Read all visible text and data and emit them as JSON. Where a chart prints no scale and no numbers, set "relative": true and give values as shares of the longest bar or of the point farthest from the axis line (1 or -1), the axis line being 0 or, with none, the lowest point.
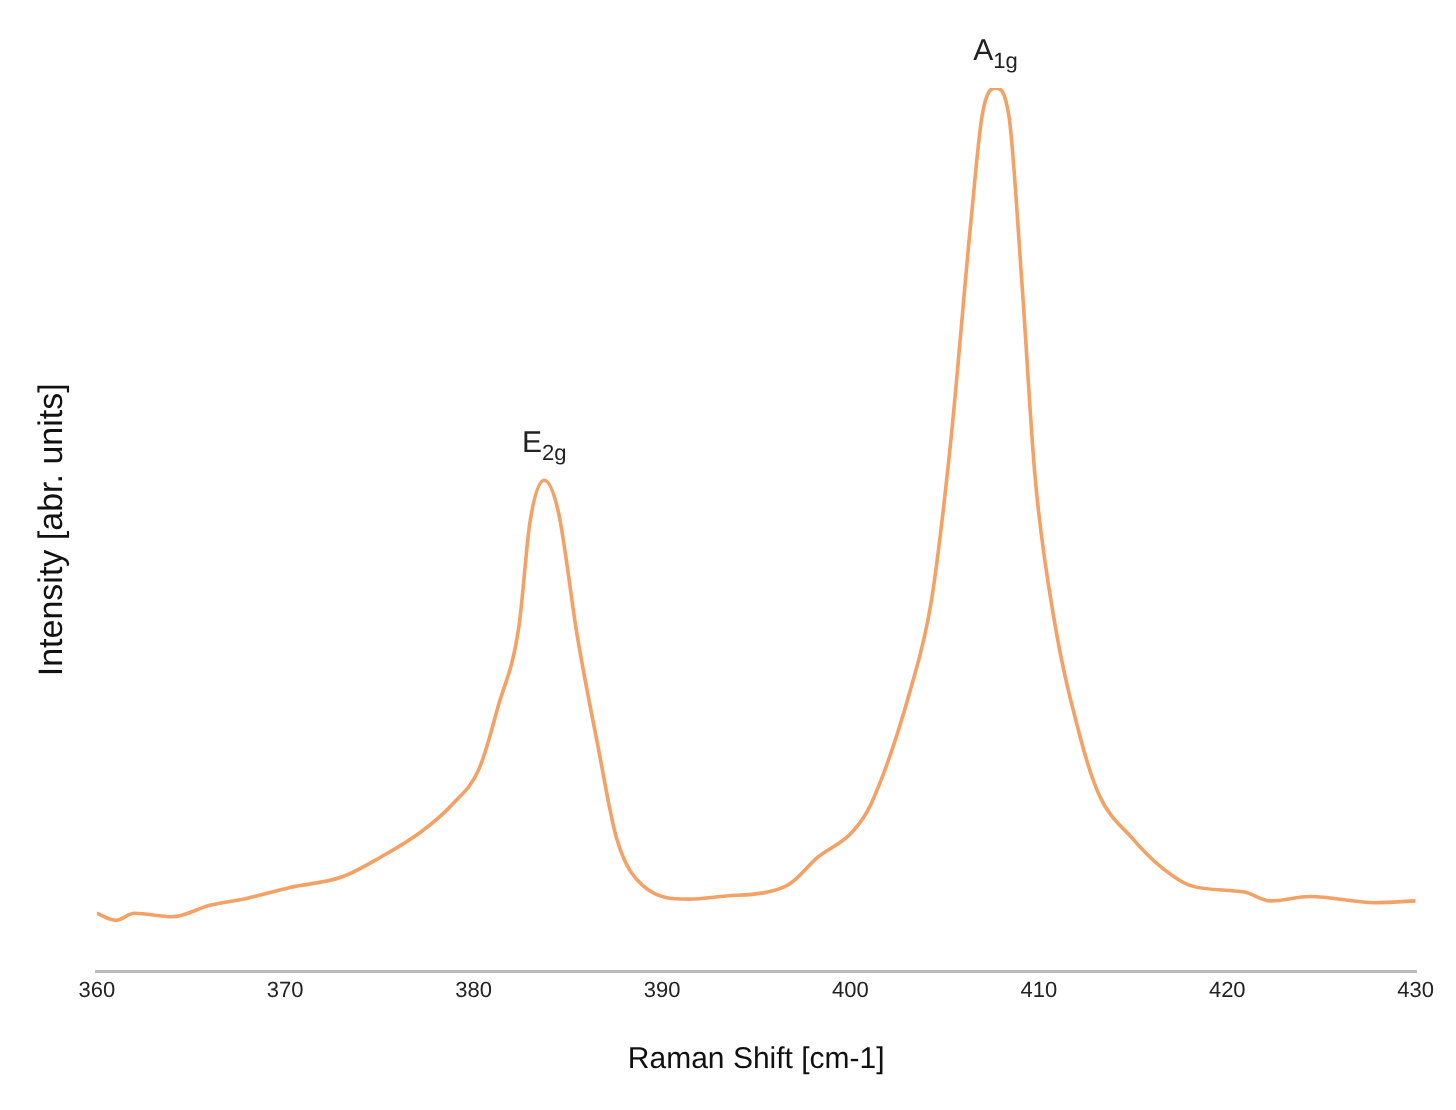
{
  "chart_data": {
    "type": "line",
    "relative": true,
    "xlabel": "Raman Shift [cm-1]",
    "ylabel": "Intensity [abr. units]",
    "xlim": [
      360,
      430
    ],
    "xticks": [
      360,
      370,
      380,
      390,
      400,
      410,
      420,
      430
    ],
    "grid": false,
    "legend": false,
    "marker": "none",
    "line_style": "solid",
    "annotations": [
      {
        "text": "E$_{2g}$",
        "x": 383.75,
        "y": 0.556
      },
      {
        "text": "A$_{1g}$",
        "x": 407.7,
        "y": 1.0
      }
    ],
    "series": [
      {
        "color": "#f4a165",
        "x": [
          360,
          361,
          362,
          364,
          366,
          368,
          370.2,
          373,
          375.1,
          377.2,
          378.9,
          380.3,
          381.3,
          382.4,
          383,
          383.75,
          384.5,
          385.5,
          386.6,
          387.6,
          389,
          391.4,
          393.1,
          396.6,
          398.3,
          400.1,
          401.1,
          403.2,
          404.3,
          405.3,
          406.4,
          407,
          407.7,
          408.4,
          409.1,
          409.8,
          410.8,
          412.2,
          413.2,
          415,
          416.4,
          418.1,
          420.9,
          422.3,
          424.4,
          427.8,
          430
        ],
        "values": [
          0.066,
          0.058,
          0.066,
          0.062,
          0.075,
          0.083,
          0.095,
          0.107,
          0.13,
          0.158,
          0.19,
          0.23,
          0.3,
          0.39,
          0.51,
          0.556,
          0.52,
          0.38,
          0.255,
          0.15,
          0.097,
          0.082,
          0.085,
          0.097,
          0.13,
          0.158,
          0.19,
          0.32,
          0.42,
          0.595,
          0.85,
          0.97,
          1.0,
          0.97,
          0.78,
          0.56,
          0.4,
          0.265,
          0.2,
          0.15,
          0.12,
          0.097,
          0.09,
          0.08,
          0.085,
          0.078,
          0.08
        ]
      }
    ]
  }
}
